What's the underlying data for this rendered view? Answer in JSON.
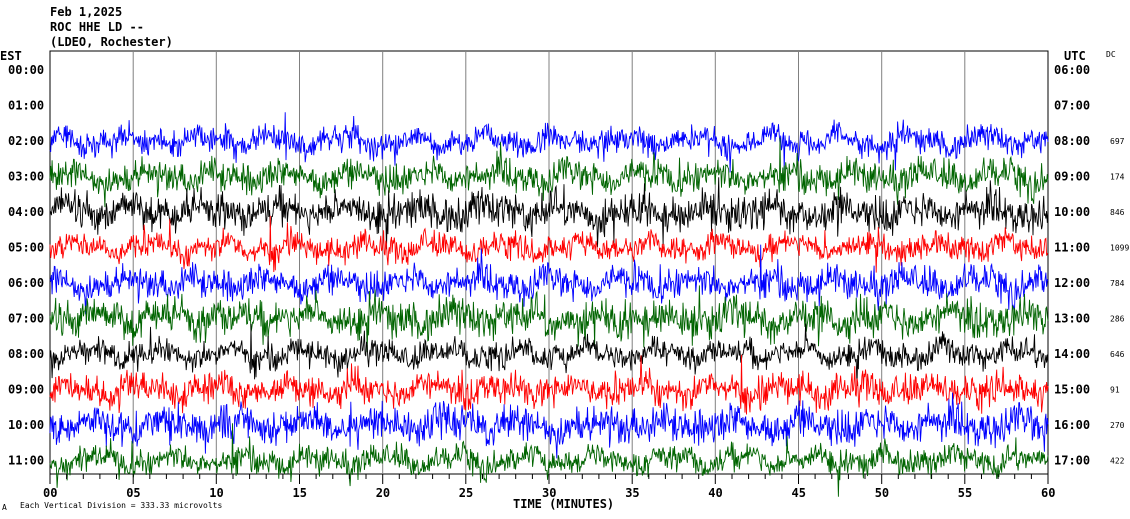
{
  "header": {
    "date": "Feb 1,2025",
    "station": "ROC HHE LD --",
    "network": "(LDEO, Rochester)"
  },
  "labels": {
    "left_tz": "EST",
    "right_tz": "UTC",
    "dc_heading": "DC",
    "xlabel": "TIME (MINUTES)",
    "footnote": "Each Vertical Division = 333.33 microvolts",
    "corner_mark": "A"
  },
  "chart_data": {
    "type": "line",
    "title": "ROC HHE LD --",
    "xlabel": "TIME (MINUTES)",
    "xlim": [
      0,
      60
    ],
    "x_ticks": [
      "00",
      "05",
      "10",
      "15",
      "20",
      "25",
      "30",
      "35",
      "40",
      "45",
      "50",
      "55",
      "60"
    ],
    "vertical_division_microvolts": 333.33,
    "grid": true,
    "series_colors": [
      "#0000ff",
      "#006400",
      "#000000",
      "#ff0000"
    ],
    "rows": [
      {
        "est": "00:00",
        "utc": "06:00",
        "dc": ""
      },
      {
        "est": "01:00",
        "utc": "07:00",
        "dc": ""
      },
      {
        "est": "02:00",
        "utc": "08:00",
        "dc": "697"
      },
      {
        "est": "03:00",
        "utc": "09:00",
        "dc": "174"
      },
      {
        "est": "04:00",
        "utc": "10:00",
        "dc": "846"
      },
      {
        "est": "05:00",
        "utc": "11:00",
        "dc": "1099"
      },
      {
        "est": "06:00",
        "utc": "12:00",
        "dc": "784"
      },
      {
        "est": "07:00",
        "utc": "13:00",
        "dc": "286"
      },
      {
        "est": "08:00",
        "utc": "14:00",
        "dc": "646"
      },
      {
        "est": "09:00",
        "utc": "15:00",
        "dc": "91"
      },
      {
        "est": "10:00",
        "utc": "16:00",
        "dc": "270"
      },
      {
        "est": "11:00",
        "utc": "17:00",
        "dc": "422"
      }
    ],
    "traces": [
      {
        "hour": "02:00",
        "color": "#0000ff"
      },
      {
        "hour": "03:00",
        "color": "#006400"
      },
      {
        "hour": "04:00",
        "color": "#000000"
      },
      {
        "hour": "05:00",
        "color": "#ff0000"
      },
      {
        "hour": "06:00",
        "color": "#0000ff"
      },
      {
        "hour": "07:00",
        "color": "#006400"
      },
      {
        "hour": "08:00",
        "color": "#000000"
      },
      {
        "hour": "09:00",
        "color": "#ff0000"
      },
      {
        "hour": "10:00",
        "color": "#0000ff"
      },
      {
        "hour": "11:00",
        "color": "#006400"
      }
    ]
  }
}
